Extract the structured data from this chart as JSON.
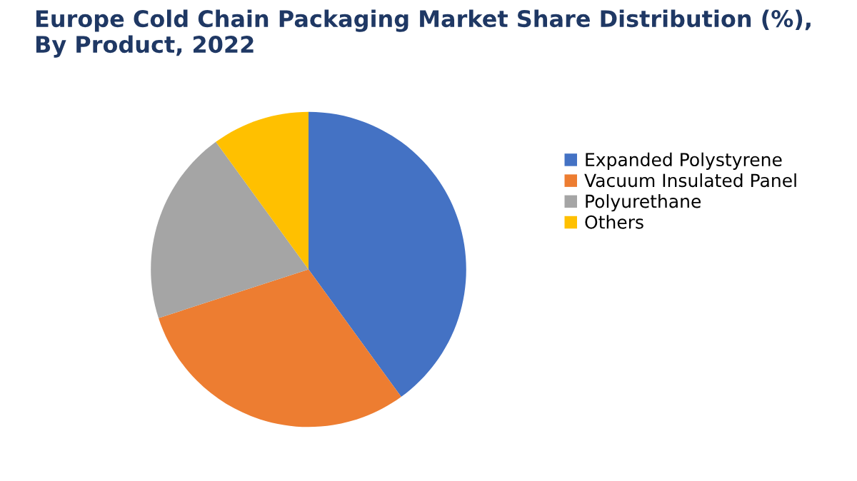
{
  "chart_data": {
    "type": "pie",
    "title": "Europe Cold Chain Packaging Market Share Distribution (%),\nBy Product, 2022",
    "categories": [
      "Expanded Polystyrene",
      "Vacuum Insulated Panel",
      "Polyurethane",
      "Others"
    ],
    "values": [
      40,
      30,
      20,
      10
    ],
    "colors": [
      "#4472c4",
      "#ed7d31",
      "#a5a5a5",
      "#ffc000"
    ],
    "legend": "right"
  }
}
